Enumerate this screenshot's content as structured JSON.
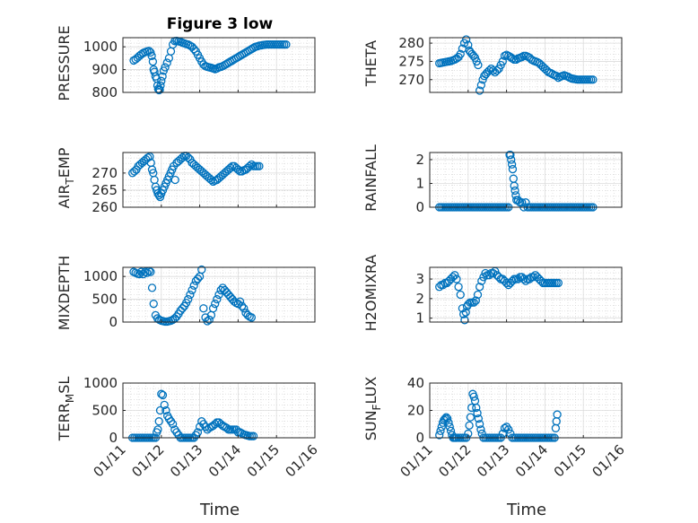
{
  "figure": {
    "title": "Figure 3 low",
    "marker_color": "#0072BD",
    "x_ticks": [
      "01/11",
      "01/12",
      "01/13",
      "01/14",
      "01/15",
      "01/16"
    ],
    "x_label": "Time"
  },
  "chart_data": [
    {
      "type": "scatter",
      "marker": "circle-open",
      "color": "#0072BD",
      "ylabel": "PRESSURE",
      "yticks": [
        800,
        900,
        1000
      ],
      "ylim": [
        800,
        1040
      ],
      "xlim": [
        0,
        5
      ],
      "grid": "on",
      "x": [
        0.28,
        0.33,
        0.38,
        0.43,
        0.48,
        0.53,
        0.58,
        0.63,
        0.68,
        0.72,
        0.75,
        0.78,
        0.8,
        0.82,
        0.85,
        0.88,
        0.9,
        0.92,
        0.94,
        0.96,
        0.98,
        1.0,
        1.03,
        1.06,
        1.1,
        1.15,
        1.2,
        1.25,
        1.3,
        1.35,
        1.4,
        1.45,
        1.5,
        1.55,
        1.6,
        1.65,
        1.7,
        1.75,
        1.8,
        1.85,
        1.9,
        1.95,
        2.0,
        2.05,
        2.1,
        2.15,
        2.2,
        2.25,
        2.3,
        2.35,
        2.4,
        2.45,
        2.5,
        2.55,
        2.6,
        2.65,
        2.7,
        2.75,
        2.8,
        2.85,
        2.9,
        2.95,
        3.0,
        3.05,
        3.1,
        3.15,
        3.2,
        3.25,
        3.3,
        3.35,
        3.4,
        3.45,
        3.5,
        3.55,
        3.6,
        3.65,
        3.7,
        3.75,
        3.8,
        3.85,
        3.9,
        3.95,
        4.0,
        4.05,
        4.1,
        4.15,
        4.2,
        4.25
      ],
      "y": [
        940,
        945,
        952,
        960,
        967,
        973,
        977,
        980,
        982,
        975,
        960,
        935,
        900,
        890,
        870,
        860,
        830,
        815,
        810,
        812,
        830,
        850,
        870,
        895,
        910,
        930,
        950,
        980,
        1010,
        1025,
        1026,
        1024,
        1022,
        1018,
        1015,
        1012,
        1010,
        1005,
        1000,
        990,
        980,
        965,
        950,
        935,
        922,
        915,
        912,
        910,
        908,
        905,
        902,
        905,
        910,
        912,
        915,
        920,
        925,
        930,
        935,
        940,
        945,
        950,
        955,
        960,
        965,
        970,
        975,
        980,
        985,
        990,
        995,
        1000,
        1002,
        1005,
        1006,
        1008,
        1009,
        1010,
        1010,
        1010,
        1010,
        1010,
        1010,
        1010,
        1010,
        1010,
        1010,
        1010
      ]
    },
    {
      "type": "scatter",
      "marker": "circle-open",
      "color": "#0072BD",
      "ylabel": "THETA",
      "yticks": [
        270,
        275,
        280
      ],
      "ylim": [
        266.5,
        281.5
      ],
      "xlim": [
        0,
        5
      ],
      "grid": "on",
      "x": [
        0.25,
        0.3,
        0.35,
        0.4,
        0.45,
        0.5,
        0.55,
        0.6,
        0.65,
        0.7,
        0.75,
        0.8,
        0.85,
        0.9,
        0.95,
        1.0,
        1.03,
        1.06,
        1.1,
        1.14,
        1.18,
        1.22,
        1.26,
        1.3,
        1.34,
        1.38,
        1.42,
        1.46,
        1.5,
        1.55,
        1.6,
        1.65,
        1.7,
        1.75,
        1.8,
        1.85,
        1.9,
        1.95,
        2.0,
        2.05,
        2.1,
        2.15,
        2.2,
        2.25,
        2.3,
        2.35,
        2.4,
        2.45,
        2.5,
        2.55,
        2.6,
        2.65,
        2.7,
        2.75,
        2.8,
        2.85,
        2.9,
        2.95,
        3.0,
        3.05,
        3.1,
        3.15,
        3.2,
        3.25,
        3.3,
        3.35,
        3.4,
        3.45,
        3.5,
        3.55,
        3.6,
        3.65,
        3.7,
        3.75,
        3.8,
        3.85,
        3.9,
        3.95,
        4.0,
        4.05,
        4.1,
        4.15,
        4.2,
        4.25
      ],
      "y": [
        274.5,
        274.6,
        274.7,
        274.8,
        274.9,
        275.0,
        275.1,
        275.3,
        275.5,
        275.8,
        276.2,
        277.0,
        278.5,
        280.0,
        281.0,
        279.5,
        278.0,
        277.5,
        277.0,
        276.5,
        276.0,
        275.0,
        274.0,
        267.0,
        268.5,
        270.0,
        271.0,
        271.5,
        272.0,
        272.5,
        273.0,
        272.5,
        272.0,
        272.5,
        273.0,
        274.0,
        275.0,
        276.5,
        276.8,
        276.5,
        276.2,
        275.8,
        275.5,
        275.5,
        275.8,
        276.0,
        276.2,
        276.5,
        276.5,
        276.3,
        276.0,
        275.5,
        275.2,
        275.0,
        274.8,
        274.5,
        274.0,
        273.5,
        273.0,
        272.5,
        272.0,
        271.8,
        271.5,
        271.2,
        271.0,
        270.5,
        270.8,
        271.0,
        271.2,
        271.0,
        270.8,
        270.5,
        270.3,
        270.2,
        270.1,
        270.0,
        270.0,
        270.0,
        270.0,
        270.0,
        270.0,
        270.0,
        270.0,
        270.0
      ]
    },
    {
      "type": "scatter",
      "marker": "circle-open",
      "color": "#0072BD",
      "ylabel": "AIR_TEMP",
      "ylabel_sub": "T",
      "yticks": [
        260,
        265,
        270
      ],
      "ylim": [
        260,
        276
      ],
      "xlim": [
        0,
        5
      ],
      "grid": "on",
      "x": [
        0.25,
        0.3,
        0.35,
        0.4,
        0.45,
        0.5,
        0.55,
        0.6,
        0.65,
        0.7,
        0.73,
        0.76,
        0.79,
        0.82,
        0.85,
        0.88,
        0.91,
        0.94,
        0.97,
        1.0,
        1.04,
        1.08,
        1.12,
        1.16,
        1.2,
        1.24,
        1.28,
        1.32,
        1.36,
        1.4,
        1.45,
        1.5,
        1.55,
        1.6,
        1.65,
        1.7,
        1.75,
        1.8,
        1.85,
        1.9,
        1.95,
        2.0,
        2.05,
        2.1,
        2.15,
        2.2,
        2.25,
        2.3,
        2.35,
        2.4,
        2.45,
        2.5,
        2.55,
        2.6,
        2.65,
        2.7,
        2.75,
        2.8,
        2.85,
        2.9,
        2.95,
        3.0,
        3.05,
        3.1,
        3.15,
        3.2,
        3.25,
        3.3,
        3.35,
        3.4,
        3.45,
        3.5,
        3.55
      ],
      "y": [
        270.0,
        270.5,
        271.0,
        272.0,
        272.5,
        273.0,
        273.5,
        274.0,
        274.5,
        274.8,
        273.0,
        271.0,
        270.0,
        268.0,
        266.0,
        265.0,
        264.0,
        263.5,
        263.0,
        264.0,
        265.0,
        266.0,
        267.0,
        268.0,
        269.0,
        270.0,
        271.0,
        272.0,
        268.0,
        273.0,
        273.5,
        274.0,
        274.5,
        275.0,
        275.0,
        274.5,
        274.0,
        273.0,
        272.5,
        272.0,
        271.5,
        271.0,
        270.5,
        270.0,
        269.5,
        269.0,
        268.5,
        268.0,
        267.5,
        267.8,
        268.0,
        268.5,
        269.0,
        269.5,
        270.0,
        270.5,
        271.0,
        271.5,
        272.0,
        272.0,
        271.5,
        271.0,
        270.5,
        270.5,
        270.8,
        271.0,
        271.5,
        272.0,
        272.5,
        272.0,
        272.0,
        272.0,
        272.0
      ]
    },
    {
      "type": "scatter",
      "marker": "circle-open",
      "color": "#0072BD",
      "ylabel": "RAINFALL",
      "yticks": [
        0,
        1,
        2
      ],
      "ylim": [
        0,
        2.3
      ],
      "xlim": [
        0,
        5
      ],
      "grid": "on",
      "x": [
        0.25,
        0.3,
        0.35,
        0.4,
        0.45,
        0.5,
        0.55,
        0.6,
        0.65,
        0.7,
        0.75,
        0.8,
        0.85,
        0.9,
        0.95,
        1.0,
        1.05,
        1.1,
        1.15,
        1.2,
        1.25,
        1.3,
        1.35,
        1.4,
        1.45,
        1.5,
        1.55,
        1.6,
        1.65,
        1.7,
        1.75,
        1.8,
        1.85,
        1.9,
        1.95,
        2.0,
        2.05,
        2.08,
        2.1,
        2.12,
        2.14,
        2.16,
        2.18,
        2.2,
        2.22,
        2.24,
        2.26,
        2.3,
        2.35,
        2.4,
        2.45,
        2.5,
        2.55,
        2.6,
        2.65,
        2.7,
        2.75,
        2.8,
        2.85,
        2.9,
        2.95,
        3.0,
        3.05,
        3.1,
        3.15,
        3.2,
        3.25,
        3.3,
        3.35,
        3.4,
        3.45,
        3.5,
        3.55,
        3.6,
        3.65,
        3.7,
        3.75,
        3.8,
        3.85,
        3.9,
        3.95,
        4.0,
        4.05,
        4.1,
        4.15,
        4.2,
        4.25
      ],
      "y": [
        0,
        0,
        0,
        0,
        0,
        0,
        0,
        0,
        0,
        0,
        0,
        0,
        0,
        0,
        0,
        0,
        0,
        0,
        0,
        0,
        0,
        0,
        0,
        0,
        0,
        0,
        0,
        0,
        0,
        0,
        0,
        0,
        0,
        0,
        0,
        0,
        0,
        2.2,
        2.2,
        2.0,
        1.8,
        1.6,
        1.2,
        0.9,
        0.7,
        0.5,
        0.3,
        0.3,
        0.2,
        0.2,
        0,
        0.2,
        0,
        0,
        0,
        0,
        0,
        0,
        0,
        0,
        0,
        0,
        0,
        0,
        0,
        0,
        0,
        0,
        0,
        0,
        0,
        0,
        0,
        0,
        0,
        0,
        0,
        0,
        0,
        0,
        0,
        0,
        0,
        0,
        0,
        0,
        0
      ]
    },
    {
      "type": "scatter",
      "marker": "circle-open",
      "color": "#0072BD",
      "ylabel": "MIXDEPTH",
      "yticks": [
        0,
        500,
        1000
      ],
      "ylim": [
        0,
        1200
      ],
      "xlim": [
        0,
        5
      ],
      "grid": "on",
      "x": [
        0.28,
        0.33,
        0.38,
        0.43,
        0.48,
        0.53,
        0.58,
        0.63,
        0.68,
        0.72,
        0.76,
        0.8,
        0.85,
        0.9,
        0.95,
        1.0,
        1.05,
        1.1,
        1.15,
        1.2,
        1.25,
        1.3,
        1.35,
        1.4,
        1.45,
        1.5,
        1.55,
        1.6,
        1.65,
        1.7,
        1.75,
        1.8,
        1.85,
        1.9,
        1.95,
        2.0,
        2.05,
        2.1,
        2.15,
        2.2,
        2.25,
        2.3,
        2.35,
        2.4,
        2.45,
        2.5,
        2.55,
        2.6,
        2.65,
        2.7,
        2.75,
        2.8,
        2.85,
        2.9,
        2.95,
        3.0,
        3.05,
        3.1,
        3.15,
        3.2,
        3.25,
        3.3,
        3.35
      ],
      "y": [
        1100,
        1080,
        1060,
        1050,
        1100,
        1050,
        1100,
        1080,
        1120,
        1100,
        750,
        400,
        150,
        80,
        50,
        30,
        20,
        10,
        10,
        20,
        30,
        50,
        80,
        120,
        180,
        250,
        300,
        350,
        420,
        500,
        600,
        700,
        800,
        900,
        950,
        1000,
        1150,
        300,
        100,
        20,
        50,
        150,
        300,
        400,
        500,
        600,
        700,
        750,
        700,
        650,
        600,
        550,
        500,
        450,
        420,
        400,
        450,
        350,
        300,
        200,
        150,
        120,
        100
      ]
    },
    {
      "type": "scatter",
      "marker": "circle-open",
      "color": "#0072BD",
      "ylabel": "H2OMIXRA",
      "yticks": [
        1,
        2,
        3
      ],
      "ylim": [
        0.8,
        3.6
      ],
      "xlim": [
        0,
        5
      ],
      "grid": "on",
      "x": [
        0.25,
        0.3,
        0.35,
        0.4,
        0.45,
        0.5,
        0.55,
        0.6,
        0.65,
        0.7,
        0.75,
        0.8,
        0.85,
        0.88,
        0.91,
        0.94,
        0.97,
        1.0,
        1.05,
        1.1,
        1.15,
        1.2,
        1.25,
        1.3,
        1.35,
        1.4,
        1.45,
        1.5,
        1.55,
        1.6,
        1.65,
        1.7,
        1.75,
        1.8,
        1.85,
        1.9,
        1.95,
        2.0,
        2.05,
        2.1,
        2.15,
        2.2,
        2.25,
        2.3,
        2.35,
        2.4,
        2.45,
        2.5,
        2.55,
        2.6,
        2.65,
        2.7,
        2.75,
        2.8,
        2.85,
        2.9,
        2.95,
        3.0,
        3.05,
        3.1,
        3.15,
        3.2,
        3.25,
        3.3,
        3.35
      ],
      "y": [
        2.6,
        2.7,
        2.7,
        2.8,
        2.8,
        2.9,
        3.0,
        3.1,
        3.2,
        3.0,
        2.6,
        2.2,
        1.5,
        1.2,
        0.9,
        1.3,
        1.6,
        1.7,
        1.8,
        1.8,
        1.8,
        1.9,
        2.2,
        2.6,
        2.9,
        3.1,
        3.3,
        3.2,
        3.2,
        3.3,
        3.3,
        3.4,
        3.2,
        3.1,
        3.0,
        3.0,
        2.9,
        2.8,
        2.7,
        2.8,
        2.9,
        3.0,
        3.0,
        3.0,
        3.1,
        3.1,
        3.0,
        2.9,
        3.0,
        3.0,
        3.1,
        3.1,
        3.2,
        3.1,
        3.0,
        2.9,
        2.8,
        2.8,
        2.8,
        2.8,
        2.8,
        2.8,
        2.8,
        2.8,
        2.8
      ]
    },
    {
      "type": "scatter",
      "marker": "circle-open",
      "color": "#0072BD",
      "ylabel": "TERR_MSL",
      "ylabel_sub": "M",
      "yticks": [
        0,
        500,
        1000
      ],
      "ylim": [
        0,
        1000
      ],
      "xlim": [
        0,
        5
      ],
      "grid": "on",
      "x": [
        0.25,
        0.3,
        0.35,
        0.4,
        0.45,
        0.5,
        0.55,
        0.6,
        0.65,
        0.7,
        0.75,
        0.8,
        0.85,
        0.88,
        0.91,
        0.94,
        0.97,
        1.0,
        1.04,
        1.08,
        1.12,
        1.16,
        1.2,
        1.25,
        1.3,
        1.35,
        1.4,
        1.45,
        1.5,
        1.55,
        1.6,
        1.65,
        1.7,
        1.75,
        1.8,
        1.85,
        1.9,
        1.95,
        2.0,
        2.05,
        2.1,
        2.15,
        2.2,
        2.25,
        2.3,
        2.35,
        2.4,
        2.45,
        2.5,
        2.55,
        2.6,
        2.65,
        2.7,
        2.75,
        2.8,
        2.85,
        2.9,
        2.95,
        3.0,
        3.05,
        3.1,
        3.15,
        3.2,
        3.25,
        3.3,
        3.35,
        3.4
      ],
      "y": [
        0,
        0,
        0,
        0,
        0,
        0,
        0,
        0,
        0,
        0,
        0,
        0,
        0,
        100,
        150,
        300,
        500,
        800,
        780,
        600,
        500,
        400,
        350,
        300,
        250,
        150,
        100,
        50,
        0,
        0,
        0,
        0,
        0,
        0,
        0,
        0,
        50,
        100,
        200,
        300,
        250,
        200,
        150,
        180,
        200,
        220,
        250,
        280,
        280,
        250,
        220,
        200,
        180,
        150,
        150,
        150,
        150,
        150,
        100,
        100,
        80,
        60,
        50,
        40,
        30,
        30,
        30
      ]
    },
    {
      "type": "scatter",
      "marker": "circle-open",
      "color": "#0072BD",
      "ylabel": "SUN_FLUX",
      "ylabel_sub": "F",
      "yticks": [
        0,
        20,
        40
      ],
      "ylim": [
        0,
        40
      ],
      "xlim": [
        0,
        5
      ],
      "grid": "on",
      "x": [
        0.25,
        0.28,
        0.31,
        0.34,
        0.37,
        0.4,
        0.43,
        0.46,
        0.49,
        0.52,
        0.55,
        0.58,
        0.61,
        0.64,
        0.67,
        0.7,
        0.75,
        0.8,
        0.85,
        0.9,
        0.95,
        1.0,
        1.03,
        1.06,
        1.09,
        1.12,
        1.15,
        1.18,
        1.21,
        1.24,
        1.27,
        1.3,
        1.33,
        1.36,
        1.4,
        1.45,
        1.5,
        1.55,
        1.6,
        1.65,
        1.7,
        1.75,
        1.8,
        1.85,
        1.9,
        1.95,
        2.0,
        2.05,
        2.1,
        2.15,
        2.2,
        2.25,
        2.3,
        2.35,
        2.4,
        2.45,
        2.5,
        2.55,
        2.6,
        2.65,
        2.7,
        2.75,
        2.8,
        2.85,
        2.9,
        2.95,
        3.0,
        3.05,
        3.1,
        3.15,
        3.2,
        3.25,
        3.28,
        3.3,
        3.32
      ],
      "y": [
        2,
        5,
        8,
        11,
        13,
        14,
        15,
        14,
        11,
        8,
        5,
        2,
        0,
        0,
        0,
        0,
        0,
        0,
        0,
        0,
        0,
        3,
        9,
        15,
        22,
        32,
        30,
        27,
        22,
        18,
        14,
        10,
        6,
        3,
        0,
        0,
        0,
        0,
        0,
        0,
        0,
        0,
        0,
        0,
        3,
        7,
        8,
        6,
        3,
        0,
        0,
        0,
        0,
        0,
        0,
        0,
        0,
        0,
        0,
        0,
        0,
        0,
        0,
        0,
        0,
        0,
        0,
        0,
        0,
        0,
        0,
        0,
        7,
        12,
        17
      ]
    }
  ]
}
